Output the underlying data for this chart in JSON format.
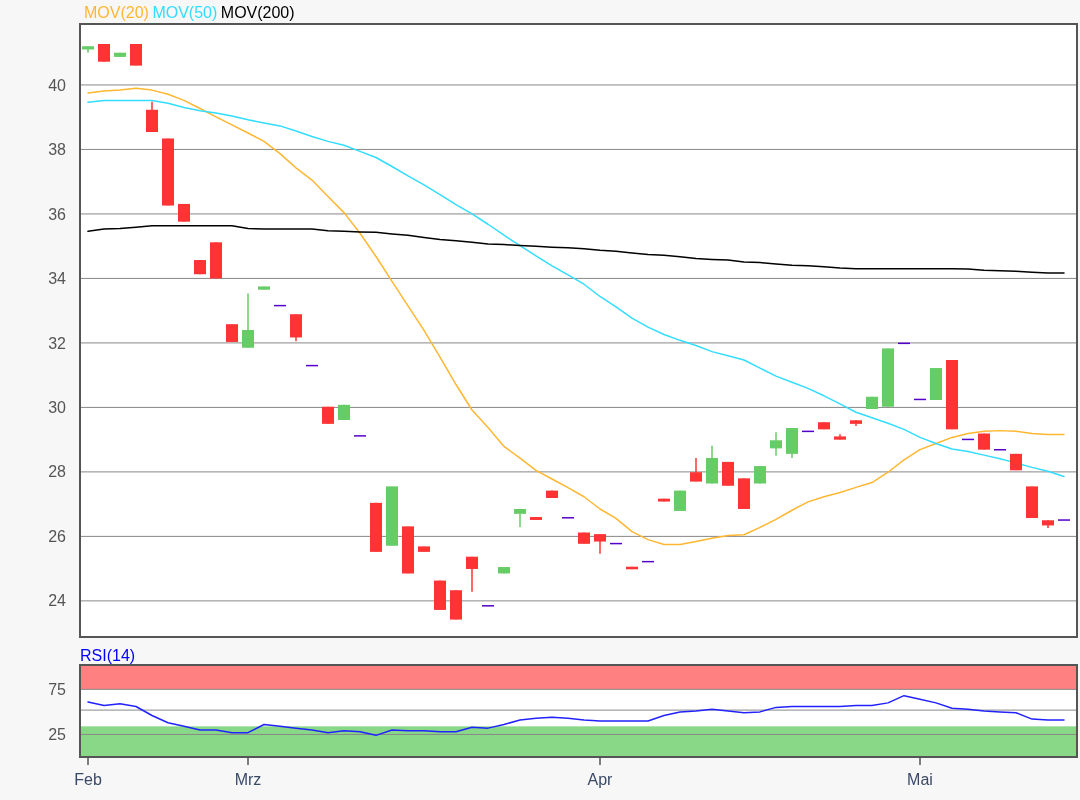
{
  "chart_data": [
    {
      "type": "candlestick",
      "categories": [
        null,
        null,
        null,
        null,
        null,
        null,
        null,
        null,
        null,
        null,
        null,
        null,
        null,
        null,
        null,
        null,
        null,
        null,
        null,
        null,
        null,
        null,
        null,
        null,
        null,
        null,
        null,
        null,
        null,
        null,
        null,
        null,
        null,
        null,
        null,
        null,
        null,
        null,
        null,
        null,
        null,
        null,
        null,
        null,
        null,
        null,
        null,
        null,
        null,
        null,
        null,
        null,
        null,
        null,
        null,
        null,
        null,
        null,
        null,
        null,
        null,
        null
      ],
      "ohlc": [
        [
          41.1,
          41.2,
          41.0,
          41.2
        ],
        [
          41.27,
          41.27,
          40.72,
          40.72
        ],
        [
          40.87,
          41.0,
          40.87,
          41.0
        ],
        [
          41.27,
          41.27,
          40.6,
          40.6
        ],
        [
          39.23,
          39.48,
          38.54,
          38.54
        ],
        [
          38.34,
          38.34,
          36.26,
          36.26
        ],
        [
          36.31,
          36.31,
          35.76,
          35.76
        ],
        [
          34.57,
          34.57,
          34.13,
          34.13
        ],
        [
          35.12,
          35.12,
          34.0,
          34.0
        ],
        [
          32.58,
          32.58,
          32.03,
          32.03
        ],
        [
          31.85,
          33.53,
          31.85,
          32.4
        ],
        [
          33.65,
          33.75,
          33.65,
          33.75
        ],
        [
          33.18,
          33.18,
          33.18,
          33.18
        ],
        [
          32.89,
          32.89,
          32.05,
          32.17
        ],
        [
          31.32,
          31.32,
          31.32,
          31.32
        ],
        [
          30.02,
          30.02,
          29.49,
          29.49
        ],
        [
          29.61,
          30.08,
          29.61,
          30.08
        ],
        [
          29.14,
          29.14,
          29.14,
          29.14
        ],
        [
          27.04,
          27.04,
          25.52,
          25.52
        ],
        [
          25.71,
          27.55,
          25.71,
          27.55
        ],
        [
          26.31,
          26.31,
          24.85,
          24.85
        ],
        [
          25.69,
          25.69,
          25.52,
          25.52
        ],
        [
          24.63,
          24.63,
          23.72,
          23.72
        ],
        [
          24.33,
          24.33,
          23.42,
          23.42
        ],
        [
          25.37,
          25.37,
          24.28,
          24.99
        ],
        [
          23.87,
          23.87,
          23.87,
          23.87
        ],
        [
          24.85,
          25.05,
          24.85,
          25.05
        ],
        [
          26.7,
          26.85,
          26.28,
          26.85
        ],
        [
          26.6,
          26.6,
          26.51,
          26.51
        ],
        [
          27.42,
          27.42,
          27.19,
          27.19
        ],
        [
          26.6,
          26.6,
          26.6,
          26.6
        ],
        [
          26.12,
          26.12,
          25.77,
          25.77
        ],
        [
          26.07,
          26.07,
          25.46,
          25.84
        ],
        [
          25.8,
          25.8,
          25.8,
          25.8
        ],
        [
          25.06,
          25.06,
          24.98,
          24.98
        ],
        [
          25.24,
          25.24,
          25.24,
          25.24
        ],
        [
          27.17,
          27.17,
          27.08,
          27.08
        ],
        [
          26.79,
          27.42,
          26.79,
          27.42
        ],
        [
          27.99,
          28.43,
          27.7,
          27.7
        ],
        [
          27.64,
          28.81,
          27.64,
          28.43
        ],
        [
          28.31,
          28.31,
          27.57,
          27.57
        ],
        [
          27.8,
          27.8,
          26.85,
          26.85
        ],
        [
          27.64,
          28.18,
          27.64,
          28.18
        ],
        [
          28.73,
          29.23,
          28.5,
          28.98
        ],
        [
          28.56,
          29.36,
          28.43,
          29.36
        ],
        [
          29.28,
          29.28,
          29.28,
          29.28
        ],
        [
          29.54,
          29.54,
          29.32,
          29.32
        ],
        [
          29.1,
          29.17,
          29.0,
          29.0
        ],
        [
          29.6,
          29.6,
          29.42,
          29.49
        ],
        [
          29.95,
          30.33,
          29.95,
          30.33
        ],
        [
          30.02,
          31.83,
          30.02,
          31.83
        ],
        [
          32.01,
          32.01,
          32.01,
          32.01
        ],
        [
          30.27,
          30.27,
          30.27,
          30.27
        ],
        [
          30.23,
          31.22,
          30.23,
          31.22
        ],
        [
          31.47,
          31.47,
          29.32,
          29.32
        ],
        [
          29.03,
          29.03,
          29.03,
          29.03
        ],
        [
          29.19,
          29.19,
          28.69,
          28.69
        ],
        [
          28.71,
          28.71,
          28.71,
          28.71
        ],
        [
          28.56,
          28.56,
          28.05,
          28.05
        ],
        [
          27.55,
          27.55,
          26.57,
          26.57
        ],
        [
          26.5,
          26.5,
          26.26,
          26.34
        ],
        [
          26.53,
          26.53,
          26.53,
          26.53
        ]
      ],
      "colors": [
        "#66cc66",
        "#ff3333",
        "#66cc66",
        "#ff3333",
        "#ff3333",
        "#ff3333",
        "#ff3333",
        "#ff3333",
        "#ff3333",
        "#ff3333",
        "#66cc66",
        "#66cc66",
        "#5500cc",
        "#ff3333",
        "#5500cc",
        "#ff3333",
        "#66cc66",
        "#5500cc",
        "#ff3333",
        "#66cc66",
        "#ff3333",
        "#ff3333",
        "#ff3333",
        "#ff3333",
        "#ff3333",
        "#5500cc",
        "#66cc66",
        "#66cc66",
        "#ff3333",
        "#ff3333",
        "#5500cc",
        "#ff3333",
        "#ff3333",
        "#5500cc",
        "#ff3333",
        "#5500cc",
        "#ff3333",
        "#66cc66",
        "#ff3333",
        "#66cc66",
        "#ff3333",
        "#ff3333",
        "#66cc66",
        "#66cc66",
        "#66cc66",
        "#5500cc",
        "#ff3333",
        "#ff3333",
        "#ff3333",
        "#66cc66",
        "#66cc66",
        "#5500cc",
        "#5500cc",
        "#66cc66",
        "#ff3333",
        "#5500cc",
        "#ff3333",
        "#5500cc",
        "#ff3333",
        "#ff3333",
        "#ff3333",
        "#5500cc"
      ],
      "series": [
        {
          "type": "line",
          "name": "MOV(20)",
          "color": "#ffb732",
          "values": [
            39.75,
            39.81,
            39.84,
            39.9,
            39.84,
            39.71,
            39.52,
            39.27,
            39.01,
            38.76,
            38.51,
            38.25,
            37.87,
            37.43,
            37.05,
            36.54,
            36.04,
            35.4,
            34.68,
            33.91,
            33.15,
            32.39,
            31.56,
            30.71,
            29.92,
            29.38,
            28.79,
            28.43,
            28.05,
            27.78,
            27.51,
            27.23,
            26.85,
            26.56,
            26.15,
            25.9,
            25.75,
            25.75,
            25.84,
            25.94,
            26.03,
            26.05,
            26.28,
            26.53,
            26.81,
            27.07,
            27.23,
            27.36,
            27.52,
            27.67,
            27.99,
            28.37,
            28.69,
            28.88,
            29.07,
            29.19,
            29.26,
            29.28,
            29.26,
            29.19,
            29.16,
            29.16
          ]
        },
        {
          "type": "line",
          "name": "MOV(50)",
          "color": "#33ddff",
          "values": [
            39.46,
            39.52,
            39.52,
            39.52,
            39.52,
            39.43,
            39.3,
            39.2,
            39.13,
            39.04,
            38.92,
            38.82,
            38.73,
            38.57,
            38.4,
            38.25,
            38.13,
            37.94,
            37.75,
            37.47,
            37.18,
            36.9,
            36.6,
            36.29,
            36.0,
            35.68,
            35.34,
            35.02,
            34.7,
            34.39,
            34.11,
            33.82,
            33.44,
            33.12,
            32.77,
            32.49,
            32.26,
            32.08,
            31.92,
            31.73,
            31.6,
            31.47,
            31.22,
            30.97,
            30.78,
            30.59,
            30.36,
            30.11,
            29.85,
            29.68,
            29.51,
            29.32,
            29.07,
            28.88,
            28.71,
            28.63,
            28.52,
            28.41,
            28.28,
            28.14,
            28.02,
            27.86
          ]
        },
        {
          "type": "line",
          "name": "MOV(200)",
          "color": "#000000",
          "values": [
            35.46,
            35.53,
            35.55,
            35.59,
            35.63,
            35.63,
            35.63,
            35.63,
            35.63,
            35.63,
            35.55,
            35.53,
            35.53,
            35.53,
            35.53,
            35.48,
            35.46,
            35.44,
            35.43,
            35.38,
            35.34,
            35.27,
            35.21,
            35.17,
            35.12,
            35.07,
            35.05,
            35.02,
            35.0,
            34.97,
            34.95,
            34.92,
            34.87,
            34.84,
            34.79,
            34.74,
            34.72,
            34.67,
            34.62,
            34.59,
            34.57,
            34.51,
            34.49,
            34.45,
            34.41,
            34.39,
            34.36,
            34.32,
            34.3,
            34.3,
            34.3,
            34.3,
            34.3,
            34.3,
            34.3,
            34.29,
            34.25,
            34.24,
            34.22,
            34.19,
            34.17,
            34.17
          ]
        }
      ],
      "ylim": [
        22.88,
        41.89
      ],
      "yticks": [
        24,
        26,
        28,
        30,
        32,
        34,
        36,
        38,
        40
      ],
      "grid": "y",
      "legend": "top left",
      "tick_labels": "y"
    },
    {
      "type": "line",
      "title": "RSI(14)",
      "categories": [
        "Feb",
        null,
        null,
        null,
        null,
        null,
        null,
        null,
        null,
        null,
        "Mrz",
        null,
        null,
        null,
        null,
        null,
        null,
        null,
        null,
        null,
        null,
        null,
        null,
        null,
        null,
        null,
        null,
        null,
        null,
        null,
        null,
        null,
        "Apr",
        null,
        null,
        null,
        null,
        null,
        null,
        null,
        null,
        null,
        null,
        null,
        null,
        null,
        null,
        null,
        null,
        null,
        null,
        null,
        "Mai",
        null,
        null,
        null,
        null,
        null,
        null,
        null,
        null,
        null
      ],
      "series": [
        {
          "color": "#2222ff",
          "values": [
            61,
            57,
            59,
            56,
            46,
            38,
            34,
            30,
            30,
            27,
            27,
            36,
            34,
            32,
            30,
            27,
            29,
            28,
            24,
            30,
            29,
            29,
            28,
            28,
            33,
            32,
            36,
            41,
            43,
            44,
            43,
            41,
            40,
            40,
            40,
            40,
            46,
            50,
            51,
            53,
            51,
            49,
            50,
            55,
            56,
            56,
            56,
            56,
            57,
            57,
            60,
            68,
            64,
            60,
            54,
            53,
            51,
            50,
            49,
            42,
            41,
            41
          ]
        }
      ],
      "bands": [
        {
          "axis": "y",
          "from": 75,
          "to": 102,
          "color": "#ff8080"
        },
        {
          "axis": "y",
          "from": 0,
          "to": 34,
          "color": "#88d888"
        }
      ],
      "ylim": [
        0,
        102
      ],
      "yticks": [
        25,
        {
          "value": 52,
          "label": null
        },
        75
      ],
      "grid": "y"
    }
  ]
}
